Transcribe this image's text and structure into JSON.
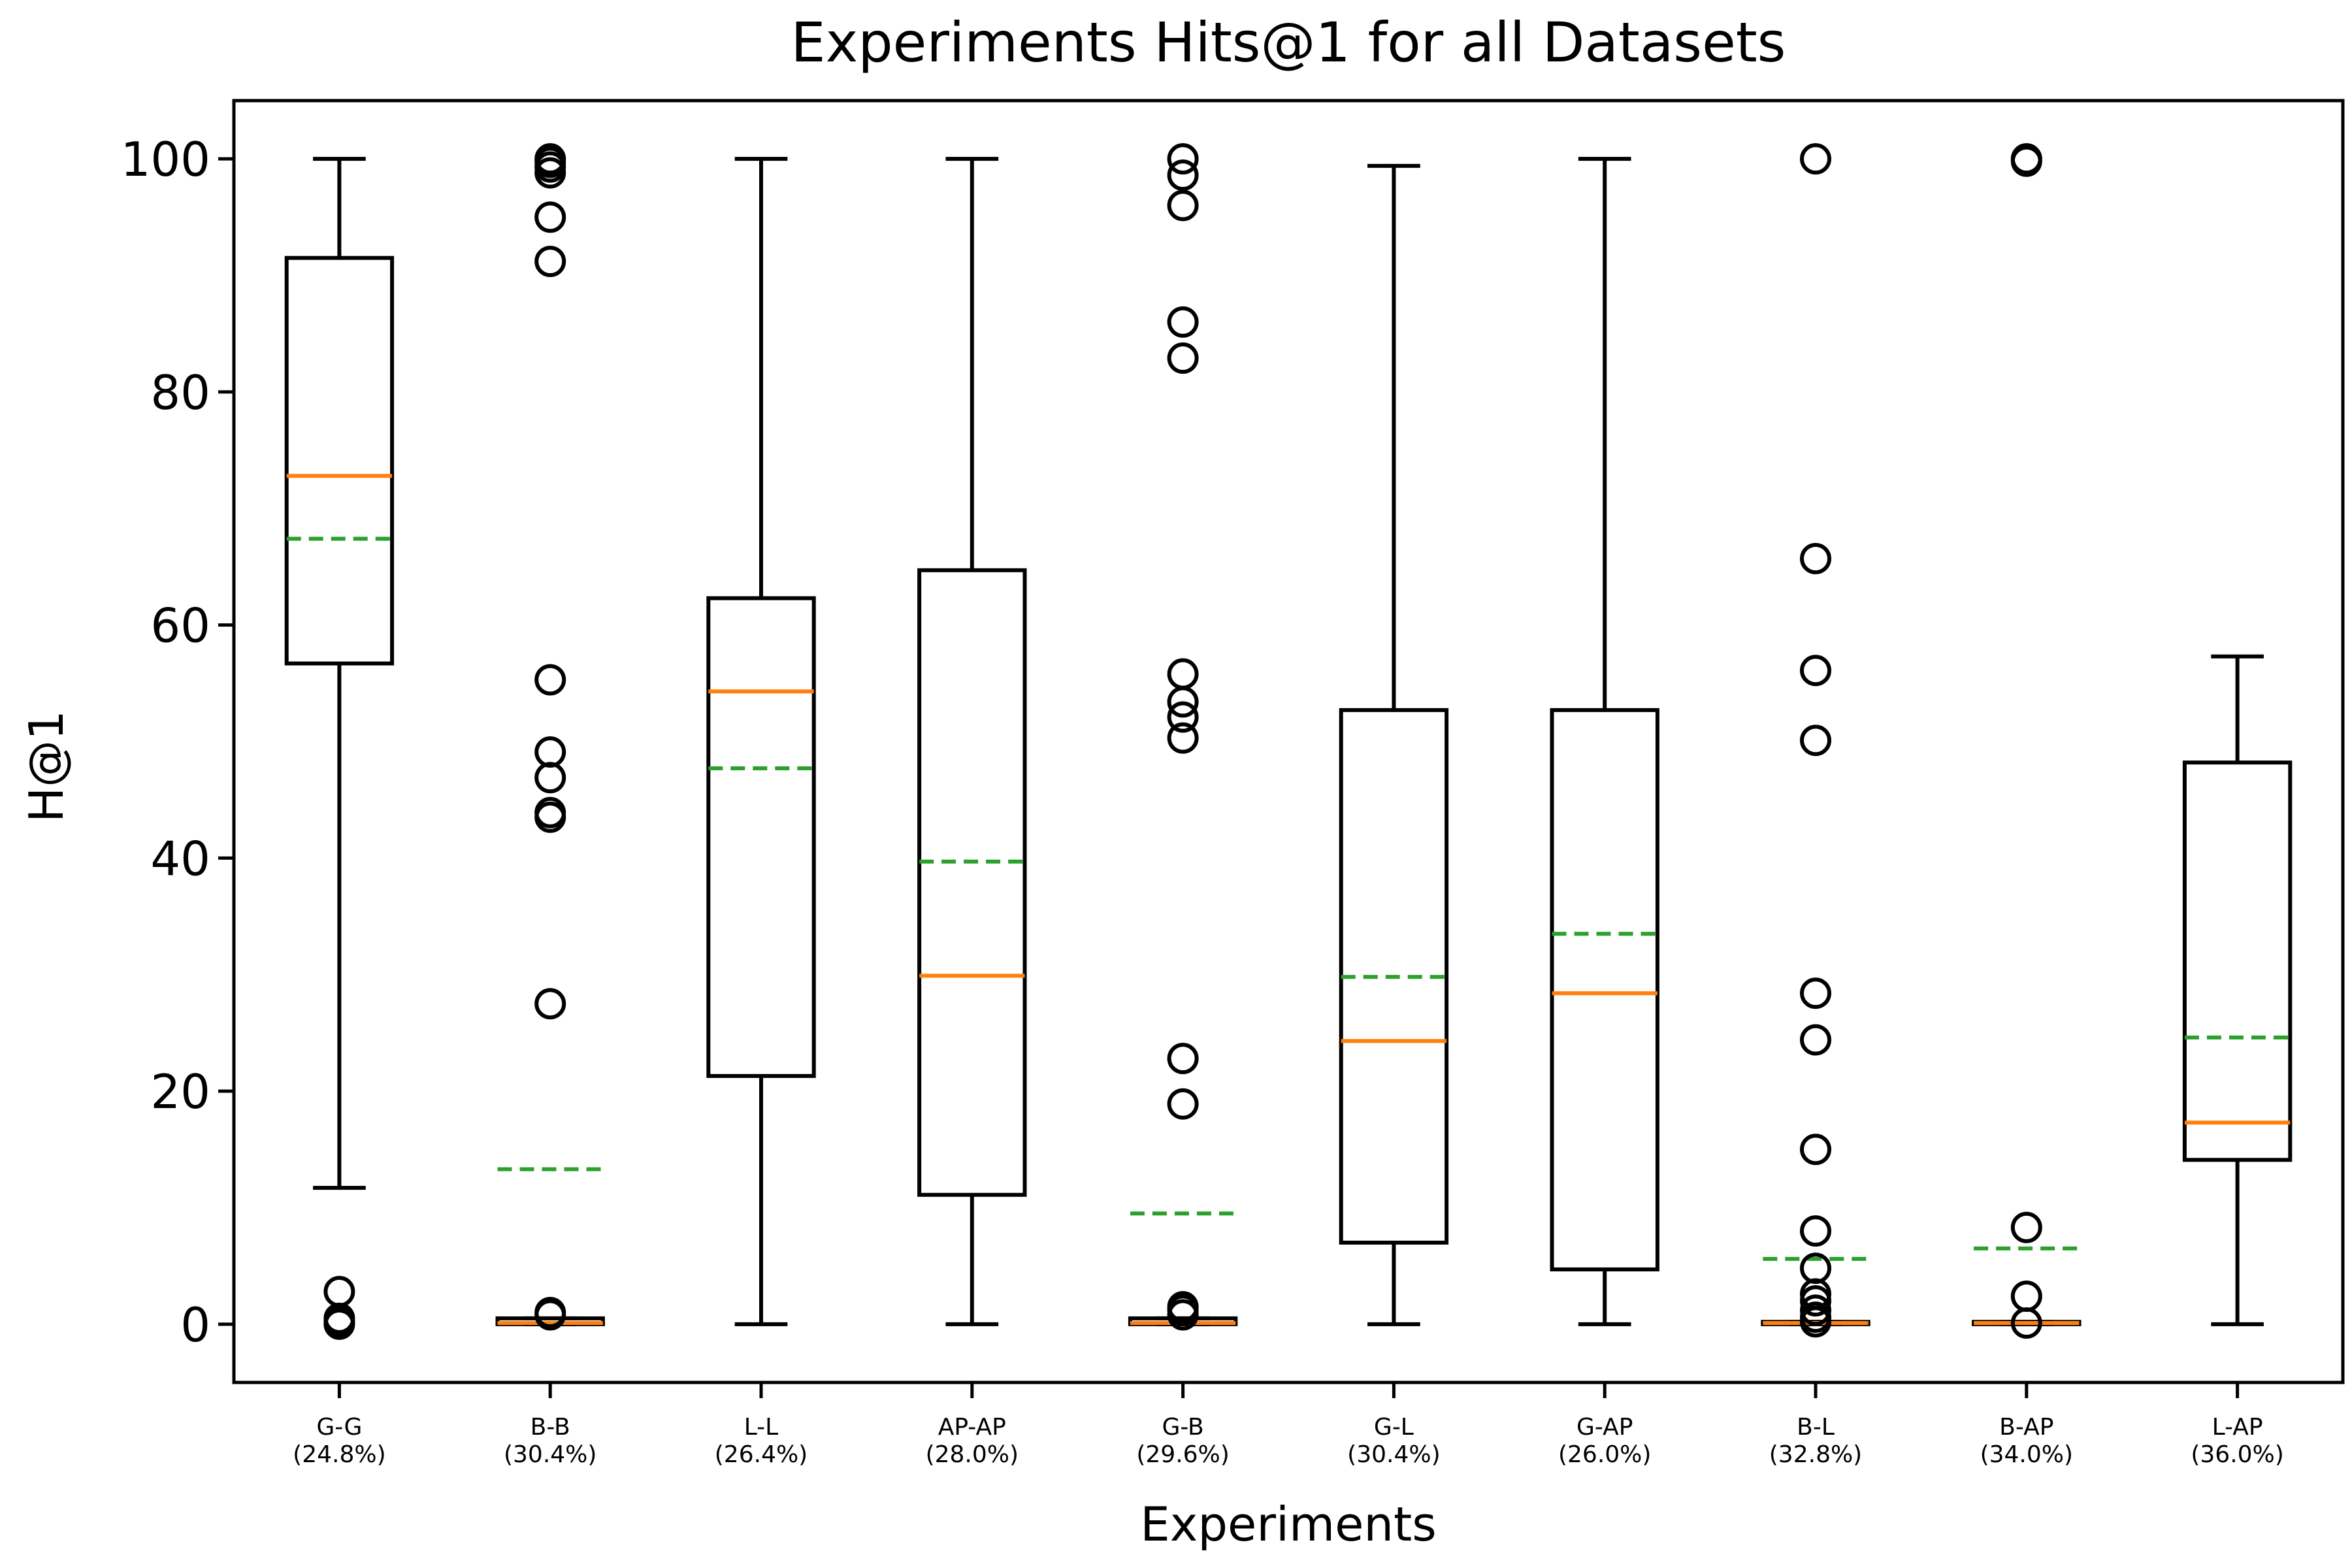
{
  "chart_data": {
    "type": "box",
    "title": "Experiments Hits@1 for all Datasets",
    "xlabel": "Experiments",
    "ylabel": "H@1",
    "ylim": [
      -5,
      105
    ],
    "yticks": [
      0,
      20,
      40,
      60,
      80,
      100
    ],
    "grid": false,
    "colors": {
      "median": "#ff7f0e",
      "mean": "#2ca02c",
      "box": "#000000"
    },
    "categories": [
      {
        "name": "G-G",
        "pct": "(24.8%)",
        "whisker_low": 11.7,
        "q1": 56.7,
        "median": 72.8,
        "q3": 91.5,
        "whisker_high": 100,
        "mean": 67.4,
        "outliers": [
          2.8,
          0.5,
          0.2,
          0
        ]
      },
      {
        "name": "B-B",
        "pct": "(30.4%)",
        "whisker_low": 0,
        "q1": 0,
        "median": 0.1,
        "q3": 0.5,
        "whisker_high": 0.5,
        "mean": 13.3,
        "outliers": [
          100,
          99.7,
          99.3,
          98.8,
          95,
          91.2,
          55.3,
          49.1,
          46.9,
          43.9,
          43.5,
          27.5,
          1.0,
          0.8
        ]
      },
      {
        "name": "L-L",
        "pct": "(26.4%)",
        "whisker_low": 0,
        "q1": 21.3,
        "median": 54.3,
        "q3": 62.3,
        "whisker_high": 100,
        "mean": 47.7,
        "outliers": []
      },
      {
        "name": "AP-AP",
        "pct": "(28.0%)",
        "whisker_low": 0,
        "q1": 11.1,
        "median": 29.9,
        "q3": 64.7,
        "whisker_high": 100,
        "mean": 39.7,
        "outliers": []
      },
      {
        "name": "G-B",
        "pct": "(29.6%)",
        "whisker_low": 0,
        "q1": 0,
        "median": 0.1,
        "q3": 0.5,
        "whisker_high": 0.5,
        "mean": 9.5,
        "outliers": [
          100,
          98.6,
          96,
          86,
          82.9,
          55.8,
          53.4,
          52.1,
          50.3,
          22.8,
          18.9,
          1.5,
          1.2,
          0.8
        ]
      },
      {
        "name": "G-L",
        "pct": "(30.4%)",
        "whisker_low": 0,
        "q1": 7.0,
        "median": 24.3,
        "q3": 52.7,
        "whisker_high": 99.4,
        "mean": 29.8,
        "outliers": []
      },
      {
        "name": "G-AP",
        "pct": "(26.0%)",
        "whisker_low": 0,
        "q1": 4.7,
        "median": 28.4,
        "q3": 52.7,
        "whisker_high": 100,
        "mean": 33.5,
        "outliers": []
      },
      {
        "name": "B-L",
        "pct": "(32.8%)",
        "whisker_low": 0,
        "q1": 0,
        "median": 0.1,
        "q3": 0.2,
        "whisker_high": 0.2,
        "mean": 5.6,
        "outliers": [
          100,
          65.7,
          56.1,
          50.1,
          28.4,
          24.4,
          15,
          8.0,
          4.8,
          2.6,
          2.0,
          1.2,
          0.6,
          0.2
        ]
      },
      {
        "name": "B-AP",
        "pct": "(34.0%)",
        "whisker_low": 0,
        "q1": 0,
        "median": 0.1,
        "q3": 0.2,
        "whisker_high": 0.2,
        "mean": 6.5,
        "outliers": [
          100,
          99.8,
          8.3,
          2.4,
          0.1
        ]
      },
      {
        "name": "L-AP",
        "pct": "(36.0%)",
        "whisker_low": 0,
        "q1": 14.1,
        "median": 17.3,
        "q3": 48.2,
        "whisker_high": 57.3,
        "mean": 24.6,
        "outliers": []
      }
    ]
  }
}
